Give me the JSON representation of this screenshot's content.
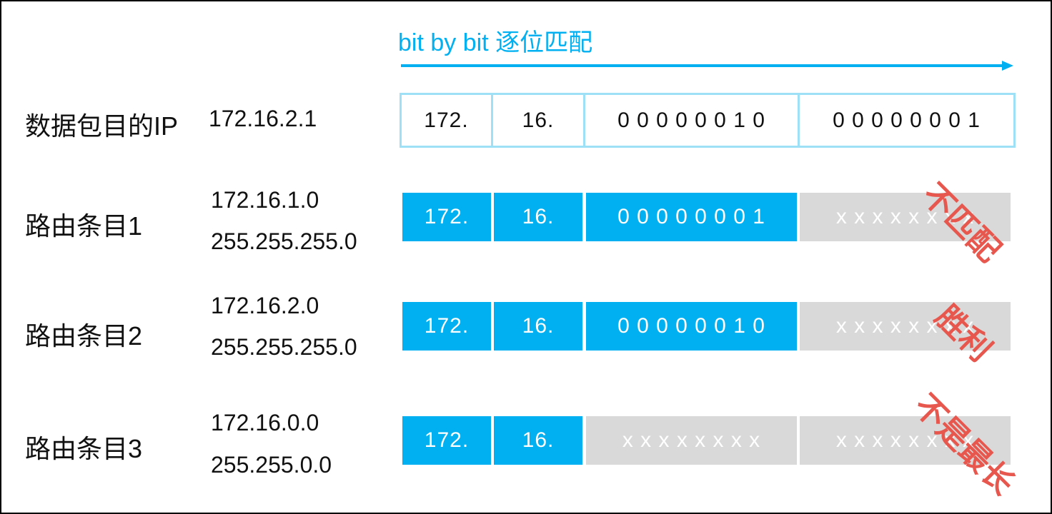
{
  "header": {
    "label": "bit by bit 逐位匹配"
  },
  "packet": {
    "label": "数据包目的IP",
    "ip": "172.16.2.1",
    "octets": [
      "172.",
      "16.",
      "0 0 0 0 0 0 1 0",
      "0 0 0 0 0 0 0 1"
    ]
  },
  "routes": [
    {
      "label": "路由条目1",
      "network": "172.16.1.0",
      "mask": "255.255.255.0",
      "octets": [
        "172.",
        "16.",
        "0 0 0 0 0 0 0 1",
        "x x x x x x x x"
      ],
      "stamp": "不匹配"
    },
    {
      "label": "路由条目2",
      "network": "172.16.2.0",
      "mask": "255.255.255.0",
      "octets": [
        "172.",
        "16.",
        "0 0 0 0 0 0 1 0",
        "x x x x x x x x"
      ],
      "stamp": "胜利"
    },
    {
      "label": "路由条目3",
      "network": "172.16.0.0",
      "mask": "255.255.0.0",
      "octets": [
        "172.",
        "16.",
        "x x x x x x x x",
        "x x x x x x x x"
      ],
      "stamp": "不是最长"
    }
  ],
  "colors": {
    "accent": "#00b0f0",
    "masked": "#d9d9d9",
    "stamp": "#e8574e"
  }
}
